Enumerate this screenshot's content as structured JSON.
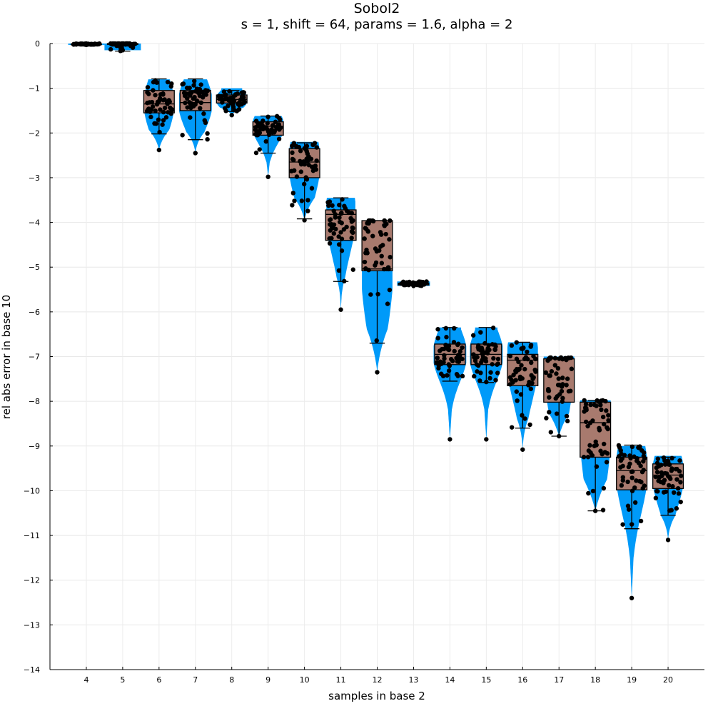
{
  "chart_data": {
    "type": "violin-box-scatter",
    "title": "Sobol2",
    "subtitle": "s = 1, shift = 64, params = 1.6, alpha = 2",
    "xlabel": "samples in base 2",
    "ylabel": "rel abs error in base 10",
    "ylim": [
      -14,
      0
    ],
    "yticks": [
      0,
      -1,
      -2,
      -3,
      -4,
      -5,
      -6,
      -7,
      -8,
      -9,
      -10,
      -11,
      -12,
      -13,
      -14
    ],
    "categories": [
      "4",
      "5",
      "6",
      "7",
      "8",
      "9",
      "10",
      "11",
      "12",
      "13",
      "14",
      "15",
      "16",
      "17",
      "18",
      "19",
      "20"
    ],
    "grid": true,
    "legend": "none",
    "colors": {
      "violin": "#009AF9",
      "box": "#A87A6E",
      "points": "#000000"
    },
    "series": [
      {
        "x": 4,
        "min": -0.02,
        "q1": -0.02,
        "median": -0.01,
        "q3": -0.01,
        "max": 0.0,
        "violin_lo": -0.03,
        "violin_hi": 0.0,
        "violin_maxhw": 0.5
      },
      {
        "x": 5,
        "min": -0.17,
        "q1": -0.02,
        "median": -0.01,
        "q3": 0.0,
        "max": 0.0,
        "violin_lo": -0.15,
        "violin_hi": 0.0,
        "violin_maxhw": 0.5
      },
      {
        "x": 6,
        "min": -2.02,
        "q1": -1.55,
        "median": -1.35,
        "q3": -1.05,
        "max": -0.79,
        "violin_lo": -2.38,
        "violin_hi": -0.8,
        "violin_maxhw": 0.4
      },
      {
        "x": 7,
        "min": -2.15,
        "q1": -1.5,
        "median": -1.32,
        "q3": -1.05,
        "max": -0.79,
        "violin_lo": -2.45,
        "violin_hi": -0.8,
        "violin_maxhw": 0.45
      },
      {
        "x": 8,
        "min": -1.52,
        "q1": -1.33,
        "median": -1.25,
        "q3": -1.15,
        "max": -1.05,
        "violin_lo": -1.6,
        "violin_hi": -1.0,
        "violin_maxhw": 0.42
      },
      {
        "x": 9,
        "min": -2.45,
        "q1": -2.05,
        "median": -1.85,
        "q3": -1.75,
        "max": -1.62,
        "violin_lo": -2.98,
        "violin_hi": -1.62,
        "violin_maxhw": 0.42
      },
      {
        "x": 10,
        "min": -3.92,
        "q1": -3.0,
        "median": -2.65,
        "q3": -2.35,
        "max": -2.22,
        "violin_lo": -3.95,
        "violin_hi": -2.2,
        "violin_maxhw": 0.42
      },
      {
        "x": 11,
        "min": -5.32,
        "q1": -4.4,
        "median": -3.82,
        "q3": -3.72,
        "max": -3.45,
        "violin_lo": -5.95,
        "violin_hi": -3.45,
        "violin_maxhw": 0.4
      },
      {
        "x": 12,
        "min": -6.7,
        "q1": -5.08,
        "median": -5.04,
        "q3": -3.96,
        "max": -3.96,
        "violin_lo": -7.35,
        "violin_hi": -3.96,
        "violin_maxhw": 0.42
      },
      {
        "x": 13,
        "min": -5.42,
        "q1": -5.4,
        "median": -5.38,
        "q3": -5.36,
        "max": -5.32,
        "violin_lo": -5.42,
        "violin_hi": -5.32,
        "violin_maxhw": 0.45
      },
      {
        "x": 14,
        "min": -7.55,
        "q1": -7.18,
        "median": -6.95,
        "q3": -6.72,
        "max": -6.35,
        "violin_lo": -8.85,
        "violin_hi": -6.35,
        "violin_maxhw": 0.45
      },
      {
        "x": 15,
        "min": -7.58,
        "q1": -7.18,
        "median": -6.95,
        "q3": -6.72,
        "max": -6.35,
        "violin_lo": -8.85,
        "violin_hi": -6.35,
        "violin_maxhw": 0.45
      },
      {
        "x": 16,
        "min": -8.6,
        "q1": -7.65,
        "median": -7.08,
        "q3": -6.95,
        "max": -6.68,
        "violin_lo": -9.08,
        "violin_hi": -6.68,
        "violin_maxhw": 0.42
      },
      {
        "x": 17,
        "min": -8.78,
        "q1": -8.02,
        "median": -7.05,
        "q3": -7.05,
        "max": -7.02,
        "violin_lo": -8.78,
        "violin_hi": -7.0,
        "violin_maxhw": 0.42
      },
      {
        "x": 18,
        "min": -10.45,
        "q1": -9.25,
        "median": -8.48,
        "q3": -8.02,
        "max": -7.98,
        "violin_lo": -10.45,
        "violin_hi": -7.98,
        "violin_maxhw": 0.42
      },
      {
        "x": 19,
        "min": -10.85,
        "q1": -9.98,
        "median": -9.55,
        "q3": -9.25,
        "max": -8.98,
        "violin_lo": -12.4,
        "violin_hi": -9.0,
        "violin_maxhw": 0.42
      },
      {
        "x": 20,
        "min": -10.55,
        "q1": -9.95,
        "median": -9.65,
        "q3": -9.4,
        "max": -9.25,
        "violin_lo": -11.1,
        "violin_hi": -9.22,
        "violin_maxhw": 0.42
      }
    ]
  }
}
